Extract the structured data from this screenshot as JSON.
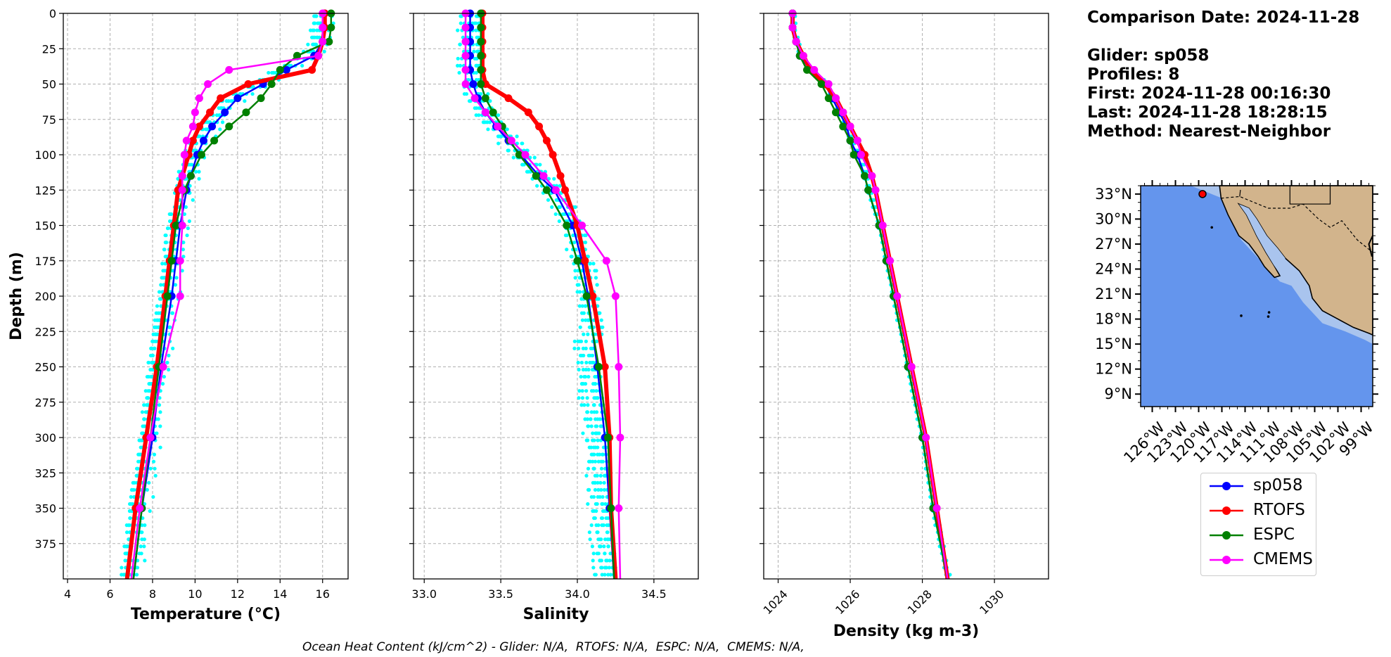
{
  "colors": {
    "sp058": "#0000ff",
    "RTOFS": "#ff0000",
    "ESPC": "#008000",
    "CMEMS": "#ff00ff",
    "profiles": "#00ffff",
    "ocean": "#6495ed",
    "shelf": "#a9c4ee",
    "land": "#d2b48c",
    "grid": "#b0b0b0"
  },
  "info": {
    "comparison_date": "Comparison Date: 2024-11-28",
    "glider": "Glider: sp058",
    "profiles": "Profiles: 8",
    "first": "First: 2024-11-28 00:16:30",
    "last": "Last: 2024-11-28 18:28:15",
    "method": "Method: Nearest-Neighbor"
  },
  "footer": "Ocean Heat Content (kJ/cm^2) - Glider: N/A,  RTOFS: N/A,  ESPC: N/A,  CMEMS: N/A,",
  "legend": [
    "sp058",
    "RTOFS",
    "ESPC",
    "CMEMS"
  ],
  "map": {
    "lat_ticks": [
      "33°N",
      "30°N",
      "27°N",
      "24°N",
      "21°N",
      "18°N",
      "15°N",
      "12°N",
      "9°N"
    ],
    "lon_ticks": [
      "126°W",
      "123°W",
      "120°W",
      "117°W",
      "114°W",
      "111°W",
      "108°W",
      "105°W",
      "102°W",
      "99°W"
    ],
    "marker_lat": 33.0,
    "marker_lon": -119.5
  },
  "chart_data": [
    {
      "type": "line",
      "xlabel": "Temperature (°C)",
      "ylabel": "Depth (m)",
      "xlim": [
        3.8,
        17.2
      ],
      "ylim": [
        400,
        0
      ],
      "xticks": [
        4,
        6,
        8,
        10,
        12,
        14,
        16
      ],
      "yticks": [
        0,
        25,
        50,
        75,
        100,
        125,
        150,
        175,
        200,
        225,
        250,
        275,
        300,
        325,
        350,
        375
      ],
      "grid": true,
      "depths": [
        0,
        10,
        20,
        30,
        40,
        50,
        60,
        70,
        80,
        90,
        100,
        115,
        125,
        150,
        175,
        200,
        250,
        300,
        350,
        400
      ],
      "series": [
        {
          "name": "sp058",
          "values": [
            16.1,
            16.1,
            16.0,
            15.6,
            14.3,
            13.2,
            12.0,
            11.4,
            10.8,
            10.4,
            10.1,
            9.8,
            9.6,
            9.3,
            9.1,
            8.9,
            8.4,
            8.0,
            7.5,
            7.1
          ]
        },
        {
          "name": "RTOFS",
          "values": [
            16.1,
            16.1,
            16.0,
            15.8,
            15.5,
            12.5,
            11.2,
            10.7,
            10.2,
            9.9,
            9.7,
            9.4,
            9.2,
            9.0,
            8.8,
            8.6,
            8.2,
            7.7,
            7.2,
            6.8
          ]
        },
        {
          "name": "ESPC",
          "values": [
            16.4,
            16.4,
            16.3,
            14.8,
            14.0,
            13.6,
            13.1,
            12.4,
            11.6,
            10.9,
            10.3,
            9.8,
            9.5,
            9.1,
            8.9,
            8.7,
            8.3,
            7.9,
            7.5,
            7.1
          ]
        },
        {
          "name": "CMEMS",
          "values": [
            16.0,
            16.0,
            16.0,
            15.8,
            11.6,
            10.6,
            10.2,
            10.0,
            9.9,
            9.6,
            9.5,
            9.4,
            9.4,
            9.4,
            9.3,
            9.3,
            8.5,
            7.9,
            7.4,
            7.0
          ]
        }
      ]
    },
    {
      "type": "line",
      "xlabel": "Salinity",
      "xlim": [
        32.93,
        34.79
      ],
      "ylim": [
        400,
        0
      ],
      "xticks": [
        33.0,
        33.5,
        34.0,
        34.5
      ],
      "grid": true,
      "depths": [
        0,
        10,
        20,
        30,
        40,
        50,
        60,
        70,
        80,
        90,
        100,
        115,
        125,
        150,
        175,
        200,
        250,
        300,
        350,
        400
      ],
      "series": [
        {
          "name": "sp058",
          "values": [
            33.3,
            33.3,
            33.3,
            33.3,
            33.3,
            33.32,
            33.35,
            33.4,
            33.47,
            33.55,
            33.63,
            33.75,
            33.85,
            33.97,
            34.03,
            34.07,
            34.13,
            34.18,
            34.21,
            34.24
          ]
        },
        {
          "name": "RTOFS",
          "values": [
            33.38,
            33.38,
            33.38,
            33.38,
            33.38,
            33.4,
            33.55,
            33.68,
            33.75,
            33.8,
            33.84,
            33.89,
            33.92,
            34.0,
            34.05,
            34.1,
            34.18,
            34.21,
            34.22,
            34.25
          ]
        },
        {
          "name": "ESPC",
          "values": [
            33.37,
            33.37,
            33.37,
            33.37,
            33.37,
            33.37,
            33.4,
            33.45,
            33.51,
            33.56,
            33.62,
            33.73,
            33.8,
            33.93,
            34.0,
            34.06,
            34.14,
            34.2,
            34.22,
            34.24
          ]
        },
        {
          "name": "CMEMS",
          "values": [
            33.27,
            33.27,
            33.27,
            33.27,
            33.27,
            33.27,
            33.33,
            33.4,
            33.48,
            33.57,
            33.66,
            33.78,
            33.86,
            34.03,
            34.19,
            34.25,
            34.27,
            34.28,
            34.27,
            34.28
          ]
        }
      ]
    },
    {
      "type": "line",
      "xlabel": "Density (kg m-3)",
      "xlim": [
        1023.6,
        1031.5
      ],
      "ylim": [
        400,
        0
      ],
      "xticks": [
        1024,
        1026,
        1028,
        1030
      ],
      "grid": true,
      "depths": [
        0,
        10,
        20,
        30,
        40,
        50,
        60,
        70,
        80,
        90,
        100,
        115,
        125,
        150,
        175,
        200,
        250,
        300,
        350,
        400
      ],
      "series": [
        {
          "name": "sp058",
          "values": [
            1024.4,
            1024.4,
            1024.5,
            1024.6,
            1024.9,
            1025.3,
            1025.5,
            1025.7,
            1025.9,
            1026.0,
            1026.2,
            1026.4,
            1026.5,
            1026.8,
            1027.0,
            1027.2,
            1027.6,
            1028.0,
            1028.3,
            1028.7
          ]
        },
        {
          "name": "RTOFS",
          "values": [
            1024.4,
            1024.4,
            1024.5,
            1024.7,
            1024.9,
            1025.3,
            1025.6,
            1025.8,
            1026.0,
            1026.2,
            1026.4,
            1026.6,
            1026.7,
            1026.9,
            1027.1,
            1027.3,
            1027.7,
            1028.1,
            1028.4,
            1028.7
          ]
        },
        {
          "name": "ESPC",
          "values": [
            1024.4,
            1024.4,
            1024.5,
            1024.6,
            1024.8,
            1025.2,
            1025.4,
            1025.6,
            1025.8,
            1026.0,
            1026.1,
            1026.4,
            1026.5,
            1026.8,
            1027.0,
            1027.2,
            1027.6,
            1028.0,
            1028.3,
            1028.7
          ]
        },
        {
          "name": "CMEMS",
          "values": [
            1024.4,
            1024.4,
            1024.5,
            1024.7,
            1025.0,
            1025.4,
            1025.6,
            1025.8,
            1026.0,
            1026.2,
            1026.3,
            1026.6,
            1026.7,
            1026.9,
            1027.1,
            1027.3,
            1027.7,
            1028.1,
            1028.4,
            1028.7
          ]
        }
      ]
    }
  ]
}
